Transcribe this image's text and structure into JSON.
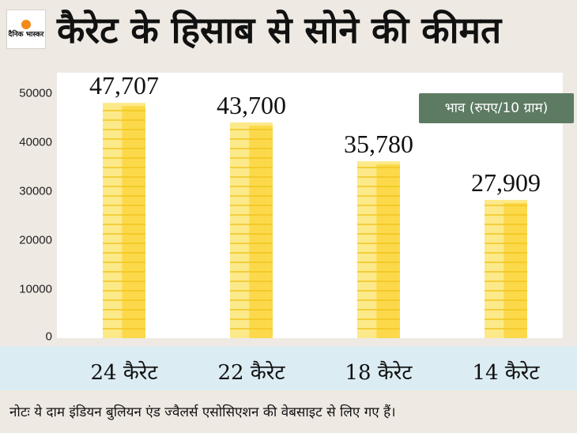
{
  "header": {
    "logo_text": "दैनिक भास्कर",
    "title": "कैरेट के हिसाब से सोने की कीमत"
  },
  "legend": {
    "label": "भाव (रुपए/10 ग्राम)"
  },
  "note": "नोटः ये दाम इंडियन बुलियन एंड ज्वैलर्स एसोसिएशन की वेबसाइट से लिए गए हैं।",
  "y_ticks": [
    "50000",
    "40000",
    "30000",
    "20000",
    "10000",
    "0"
  ],
  "value_labels": [
    "47,707",
    "43,700",
    "35,780",
    "27,909"
  ],
  "colors": {
    "bar_light": "#fce98a",
    "bar_main": "#fbd94a",
    "bar_dark": "#f2c51f",
    "legend_bg": "#5d7b63",
    "category_band": "#dcecf3"
  },
  "chart_data": {
    "type": "bar",
    "categories": [
      "24 कैरेट",
      "22 कैरेट",
      "18 कैरेट",
      "14 कैरेट"
    ],
    "values": [
      47707,
      43700,
      35780,
      27909
    ],
    "title": "कैरेट के हिसाब से सोने की कीमत",
    "xlabel": "",
    "ylabel": "",
    "ylim": [
      0,
      50000
    ],
    "grid": false,
    "legend_position": "top-right"
  }
}
